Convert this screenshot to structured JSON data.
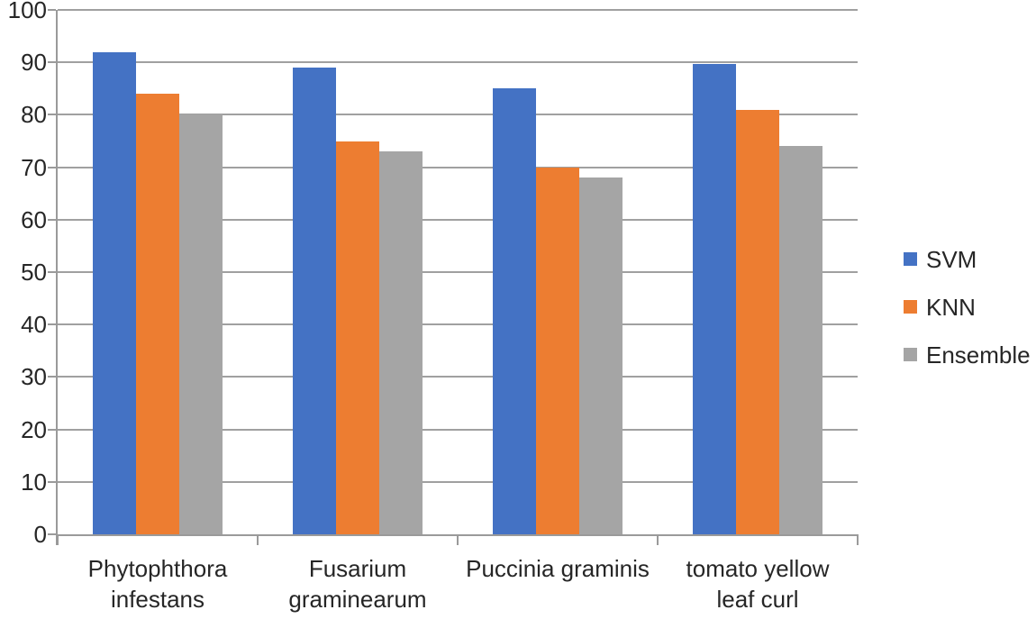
{
  "chart_data": {
    "type": "bar",
    "title": "",
    "xlabel": "",
    "ylabel": "",
    "categories": [
      "Phytophthora infestans",
      "Fusarium graminearum",
      "Puccinia graminis",
      "tomato yellow leaf curl"
    ],
    "category_label_lines": [
      [
        "Phytophthora",
        "infestans"
      ],
      [
        "Fusarium",
        "graminearum"
      ],
      [
        "Puccinia graminis"
      ],
      [
        "tomato yellow",
        "leaf curl"
      ]
    ],
    "series": [
      {
        "name": "SVM",
        "color": "#4472C4",
        "values": [
          92,
          89,
          85,
          89.7
        ]
      },
      {
        "name": "KNN",
        "color": "#ED7D31",
        "values": [
          84,
          75,
          70,
          81
        ]
      },
      {
        "name": "Ensemble",
        "color": "#A5A5A5",
        "values": [
          80,
          73,
          68,
          74
        ]
      }
    ],
    "ylim": [
      0,
      100
    ],
    "y_tick_step": 10,
    "y_tick_labels": [
      "0",
      "10",
      "20",
      "30",
      "40",
      "50",
      "60",
      "70",
      "80",
      "90",
      "100"
    ],
    "grid": true,
    "legend_position": "right",
    "legend_entries": [
      "SVM",
      "KNN",
      "Ensemble"
    ]
  },
  "colors": {
    "background": "#ffffff",
    "axis": "#9a9a9a",
    "grid": "#a0a0a0",
    "text": "#262626"
  }
}
